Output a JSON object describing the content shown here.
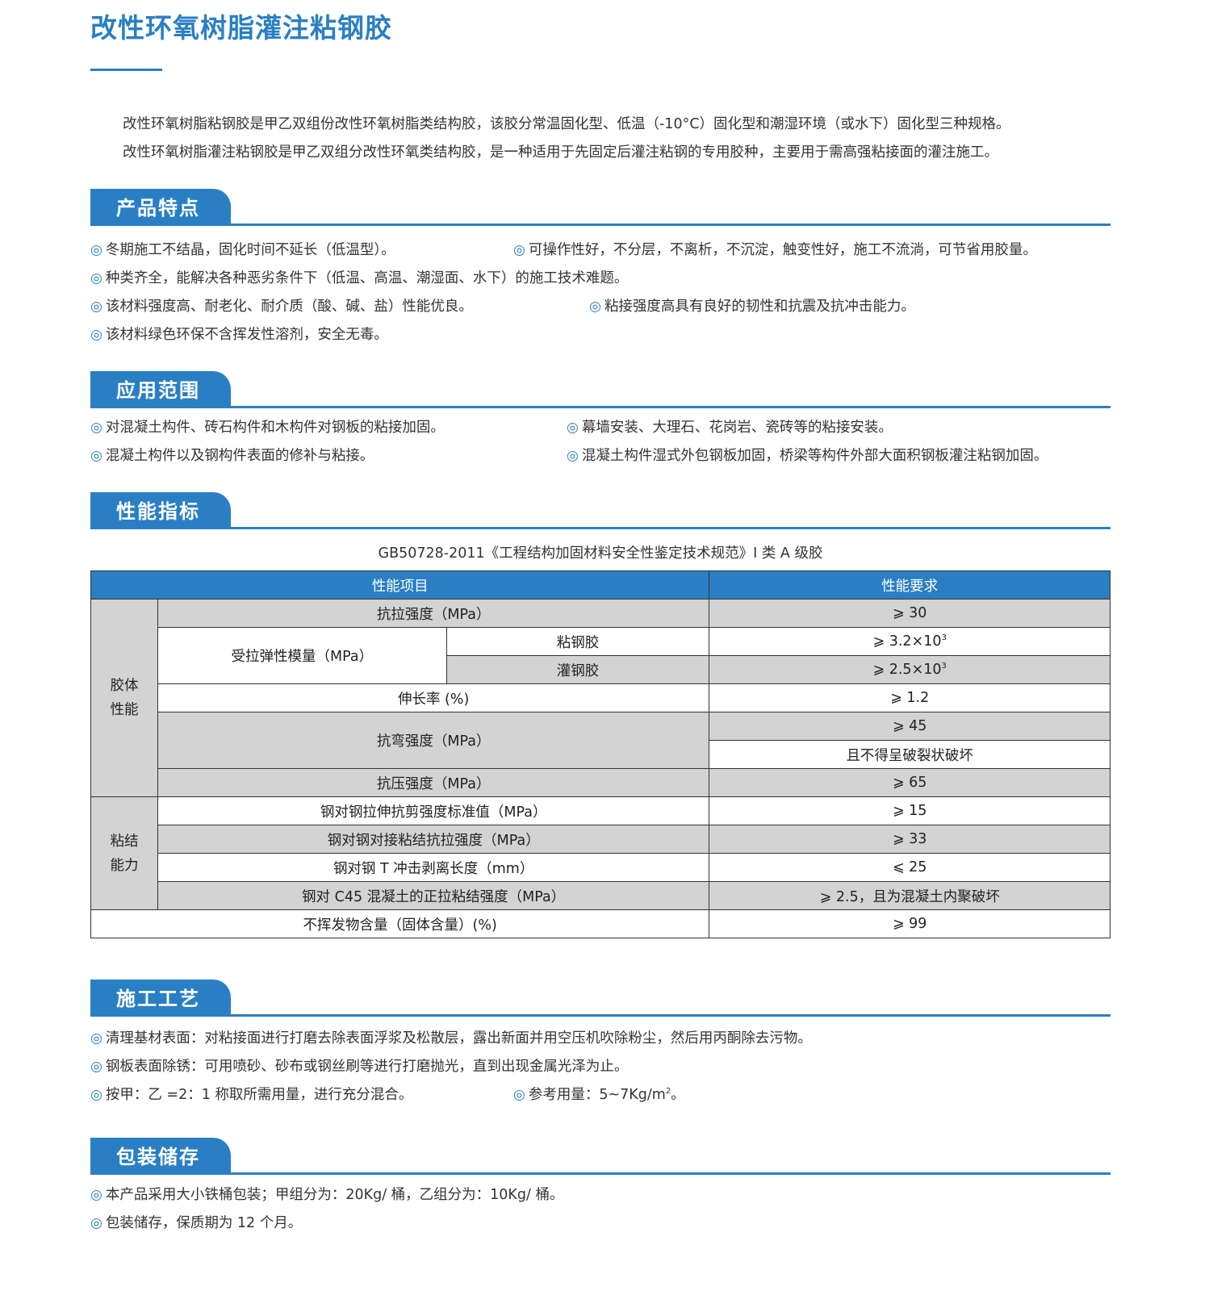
{
  "title": "改性环氧树脂灌注粘钢胶",
  "intro": [
    "改性环氧树脂粘钢胶是甲乙双组份改性环氧树脂类结构胶，该胶分常温固化型、低温（-10°C）固化型和潮湿环境（或水下）固化型三种规格。",
    "改性环氧树脂灌注粘钢胶是甲乙双组分改性环氧类结构胶，是一种适用于先固定后灌注粘钢的专用胶种，主要用于需高强粘接面的灌注施工。"
  ],
  "bullet": "◎",
  "sections": {
    "features": {
      "title": "产品特点",
      "items": [
        "冬期施工不结晶，固化时间不延长（低温型）。",
        "可操作性好，不分层，不离析，不沉淀，触变性好，施工不流淌，可节省用胶量。",
        "种类齐全，能解决各种恶劣条件下（低温、高温、潮湿面、水下）的施工技术难题。",
        "该材料强度高、耐老化、耐介质（酸、碱、盐）性能优良。",
        "粘接强度高具有良好的韧性和抗震及抗冲击能力。",
        "该材料绿色环保不含挥发性溶剂，安全无毒。"
      ]
    },
    "applications": {
      "title": "应用范围",
      "items": [
        "对混凝土构件、砖石构件和木构件对钢板的粘接加固。",
        "幕墙安装、大理石、花岗岩、瓷砖等的粘接安装。",
        "混凝土构件以及钢构件表面的修补与粘接。",
        "混凝土构件湿式外包钢板加固，桥梁等构件外部大面积钢板灌注粘钢加固。"
      ]
    },
    "performance": {
      "title": "性能指标",
      "caption": "GB50728-2011《工程结构加固材料安全性鉴定技术规范》I 类 A 级胶",
      "table": {
        "headers": [
          "性能项目",
          "性能要求"
        ],
        "group1": "胶体性能",
        "group2": "粘结能力",
        "r1": [
          "抗拉强度（MPa）",
          "⩾ 30"
        ],
        "r2": [
          "受拉弹性模量（MPa）",
          "粘钢胶",
          "⩾ 3.2×10",
          "3"
        ],
        "r3": [
          "灌钢胶",
          "⩾ 2.5×10",
          "3"
        ],
        "r4": [
          "伸长率 (%)",
          "⩾ 1.2"
        ],
        "r5": [
          "抗弯强度（MPa）",
          "⩾ 45",
          "且不得呈破裂状破坏"
        ],
        "r6": [
          "抗压强度（MPa）",
          "⩾ 65"
        ],
        "r7": [
          "钢对钢拉伸抗剪强度标准值（MPa）",
          "⩾ 15"
        ],
        "r8": [
          "钢对钢对接粘结抗拉强度（MPa）",
          "⩾ 33"
        ],
        "r9": [
          "钢对钢 T 冲击剥离长度（mm）",
          "⩽ 25"
        ],
        "r10": [
          "钢对 C45 混凝土的正拉粘结强度（MPa）",
          "⩾ 2.5，且为混凝土内聚破坏"
        ],
        "r11": [
          "不挥发物含量（固体含量）(%)",
          "⩾ 99"
        ]
      }
    },
    "construction": {
      "title": "施工工艺",
      "items": [
        "清理基材表面：对粘接面进行打磨去除表面浮浆及松散层，露出新面并用空压机吹除粉尘，然后用丙酮除去污物。",
        "钢板表面除锈：可用喷砂、砂布或钢丝刷等进行打磨抛光，直到出现金属光泽为止。",
        "按甲：乙 =2：1 称取所需用量，进行充分混合。",
        "参考用量：5~7Kg/m",
        "2",
        "。"
      ]
    },
    "packaging": {
      "title": "包装储存",
      "items": [
        "本产品采用大小铁桶包装；甲组分为：20Kg/ 桶，乙组分为：10Kg/ 桶。",
        "包装储存，保质期为 12 个月。"
      ]
    }
  },
  "colors": {
    "accent": "#2a7fc4",
    "table_gray": "#d3d3d3"
  }
}
